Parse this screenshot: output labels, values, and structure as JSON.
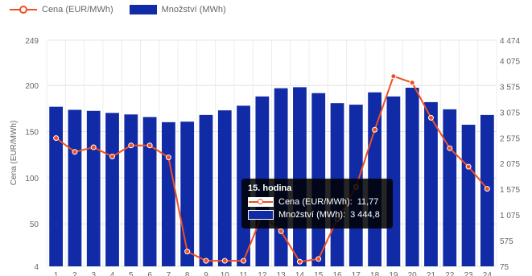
{
  "chart_data": {
    "type": "bar+line",
    "categories": [
      "1",
      "2",
      "3",
      "4",
      "5",
      "6",
      "7",
      "8",
      "9",
      "10",
      "11",
      "12",
      "13",
      "14",
      "15",
      "16",
      "17",
      "18",
      "19",
      "20",
      "21",
      "22",
      "23",
      "24"
    ],
    "series": [
      {
        "name": "Cena (EUR/MWh)",
        "type": "line",
        "axis": "left",
        "color": "#ef4f23",
        "values": [
          143,
          128,
          133,
          123,
          135,
          135,
          122,
          20,
          10,
          10,
          10,
          60,
          42,
          9,
          12,
          55,
          90,
          152,
          210,
          203,
          165,
          132,
          112,
          88
        ]
      },
      {
        "name": "Množství (MWh)",
        "type": "bar",
        "axis": "right",
        "color": "#112aa6",
        "values": [
          3180,
          3120,
          3100,
          3060,
          3030,
          2980,
          2880,
          2890,
          3020,
          3110,
          3200,
          3380,
          3540,
          3560,
          3444.8,
          3250,
          3220,
          3460,
          3380,
          3550,
          3270,
          3130,
          2830,
          3020
        ]
      }
    ],
    "ylabel": "Cena (EUR/MWh)",
    "ylim": [
      4,
      249
    ],
    "yticks": [
      "4",
      "50",
      "100",
      "150",
      "200",
      "249"
    ],
    "y2lim": [
      75,
      4474
    ],
    "y2ticks": [
      "75",
      "575",
      "1 075",
      "1 575",
      "2 075",
      "2 575",
      "3 075",
      "3 575",
      "4 075",
      "4 474"
    ],
    "grid": true,
    "legend": "top-left",
    "tooltip": {
      "title": "15. hodina",
      "rows": [
        {
          "label": "Cena (EUR/MWh):",
          "value": "11,77"
        },
        {
          "label": "Množství (MWh):",
          "value": "3 444,8"
        }
      ]
    }
  }
}
